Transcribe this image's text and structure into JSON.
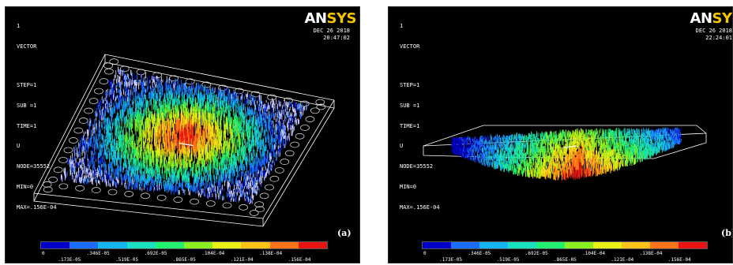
{
  "figures": [
    {
      "id": "a",
      "plot_number": "1",
      "plot_type": "VECTOR",
      "info_lines": [
        "STEP=1",
        "SUB =1",
        "TIME=1",
        "U",
        "NODE=35552",
        "MIN=0",
        "MAX=.156E-04"
      ],
      "logo_an": "AN",
      "logo_sys": "SYS",
      "date": "DEC 26 2018",
      "time": "20:47:02",
      "tag": "(a)"
    },
    {
      "id": "b",
      "plot_number": "1",
      "plot_type": "VECTOR",
      "info_lines": [
        "STEP=1",
        "SUB =1",
        "TIME=1",
        "U",
        "NODE=35552",
        "MIN=0",
        "MAX=.156E-04"
      ],
      "logo_an": "AN",
      "logo_sys": "SYS",
      "date": "DEC 26 2018",
      "time": "22:24:01",
      "tag": "(b)"
    }
  ],
  "legend": {
    "colors": [
      "#0000c8",
      "#1a6cff",
      "#17b4f2",
      "#18e0c0",
      "#22f070",
      "#8cf020",
      "#e8f014",
      "#ffc21a",
      "#ff7418",
      "#e81414"
    ],
    "upper_labels": [
      "0",
      ".346E-05",
      ".692E-05",
      ".104E-04",
      ".138E-04"
    ],
    "lower_labels": [
      ".173E-05",
      ".519E-05",
      ".865E-05",
      ".121E-04",
      ".156E-04"
    ]
  }
}
